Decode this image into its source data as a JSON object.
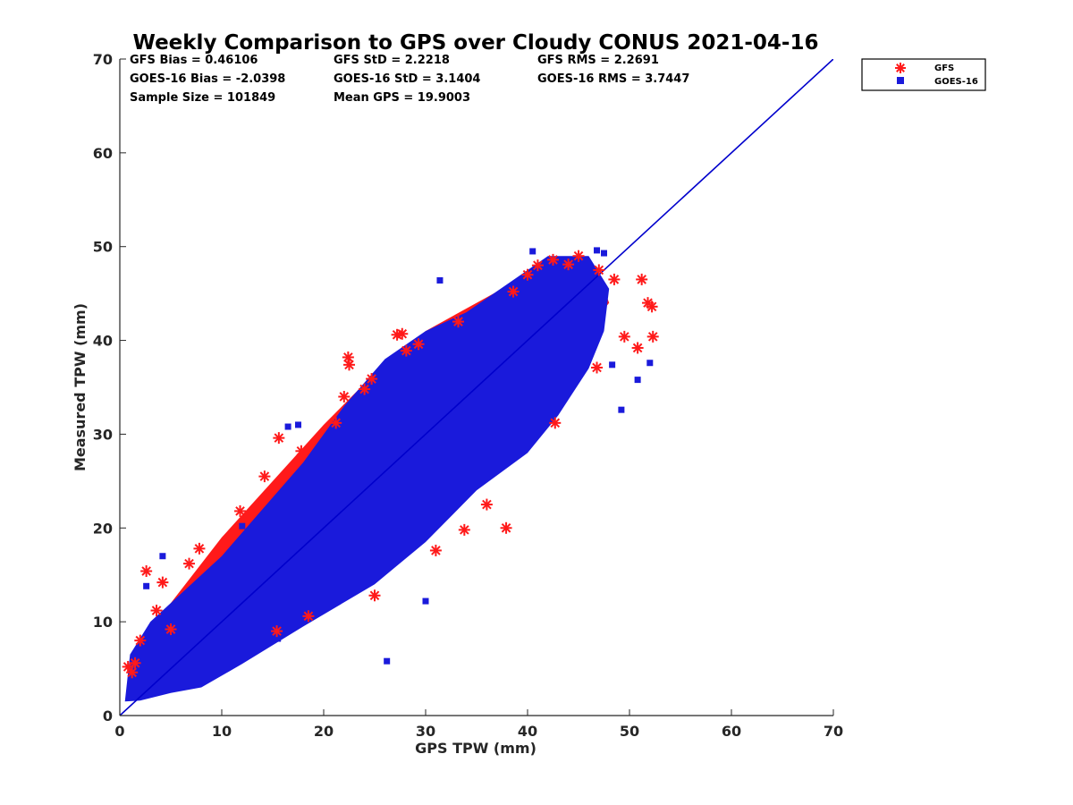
{
  "chart_data": {
    "type": "scatter",
    "title": "Weekly Comparison to GPS over Cloudy CONUS 2021-04-16",
    "xlabel": "GPS TPW (mm)",
    "ylabel": "Measured TPW (mm)",
    "xlim": [
      0,
      70
    ],
    "ylim": [
      0,
      70
    ],
    "xticks": [
      "0",
      "10",
      "20",
      "30",
      "40",
      "50",
      "60",
      "70"
    ],
    "yticks": [
      "0",
      "10",
      "20",
      "30",
      "40",
      "50",
      "60",
      "70"
    ],
    "grid": false,
    "legend_position": "outside-top-right",
    "stats": [
      [
        "GFS Bias = 0.46106",
        "GFS StD = 2.2218",
        "GFS RMS = 2.2691"
      ],
      [
        "GOES-16 Bias = -2.0398",
        "GOES-16 StD = 3.1404",
        "GOES-16 RMS = 3.7447"
      ],
      [
        "Sample Size = 101849",
        "Mean GPS = 19.9003",
        ""
      ]
    ],
    "reference_line": {
      "x": [
        0,
        70
      ],
      "y": [
        0,
        70
      ],
      "color": "#0000cc"
    },
    "series": [
      {
        "name": "GFS",
        "marker": "asterisk",
        "color": "#ff1a1a",
        "points": [
          [
            0.8,
            5.2
          ],
          [
            1.2,
            4.6
          ],
          [
            1.5,
            5.6
          ],
          [
            2.0,
            8.0
          ],
          [
            2.6,
            15.4
          ],
          [
            3.6,
            11.2
          ],
          [
            4.2,
            14.2
          ],
          [
            5.0,
            9.2
          ],
          [
            6.8,
            16.2
          ],
          [
            7.8,
            17.8
          ],
          [
            11.8,
            21.8
          ],
          [
            14.2,
            25.5
          ],
          [
            15.6,
            29.6
          ],
          [
            15.4,
            9.0
          ],
          [
            17.8,
            28.2
          ],
          [
            18.5,
            10.6
          ],
          [
            21.2,
            31.2
          ],
          [
            22.0,
            34.0
          ],
          [
            22.4,
            38.2
          ],
          [
            22.5,
            37.4
          ],
          [
            24.0,
            34.8
          ],
          [
            24.7,
            35.9
          ],
          [
            25.0,
            12.8
          ],
          [
            27.2,
            40.6
          ],
          [
            27.7,
            40.7
          ],
          [
            28.1,
            38.9
          ],
          [
            29.3,
            39.6
          ],
          [
            31.0,
            17.6
          ],
          [
            33.2,
            42.0
          ],
          [
            33.8,
            19.8
          ],
          [
            36.0,
            22.5
          ],
          [
            37.9,
            20.0
          ],
          [
            38.6,
            45.2
          ],
          [
            40.0,
            47.0
          ],
          [
            41.0,
            48.0
          ],
          [
            42.5,
            48.6
          ],
          [
            42.7,
            31.2
          ],
          [
            44.0,
            48.1
          ],
          [
            45.0,
            49.0
          ],
          [
            46.8,
            37.1
          ],
          [
            47.0,
            47.5
          ],
          [
            48.5,
            46.5
          ],
          [
            49.5,
            40.4
          ],
          [
            50.8,
            39.2
          ],
          [
            51.2,
            46.5
          ],
          [
            51.8,
            44.0
          ],
          [
            52.2,
            43.6
          ],
          [
            52.3,
            40.4
          ]
        ]
      },
      {
        "name": "GOES-16",
        "marker": "square",
        "color": "#1a1adb",
        "points": [
          [
            2.6,
            13.8
          ],
          [
            4.2,
            17.0
          ],
          [
            12.0,
            20.2
          ],
          [
            15.5,
            8.2
          ],
          [
            16.5,
            30.8
          ],
          [
            17.5,
            31.0
          ],
          [
            26.2,
            5.8
          ],
          [
            30.0,
            12.2
          ],
          [
            31.4,
            46.4
          ],
          [
            40.5,
            49.5
          ],
          [
            45.5,
            48.6
          ],
          [
            46.8,
            49.6
          ],
          [
            47.5,
            49.3
          ],
          [
            48.3,
            37.4
          ],
          [
            49.2,
            32.6
          ],
          [
            50.8,
            35.8
          ],
          [
            52.0,
            37.6
          ]
        ]
      }
    ]
  }
}
